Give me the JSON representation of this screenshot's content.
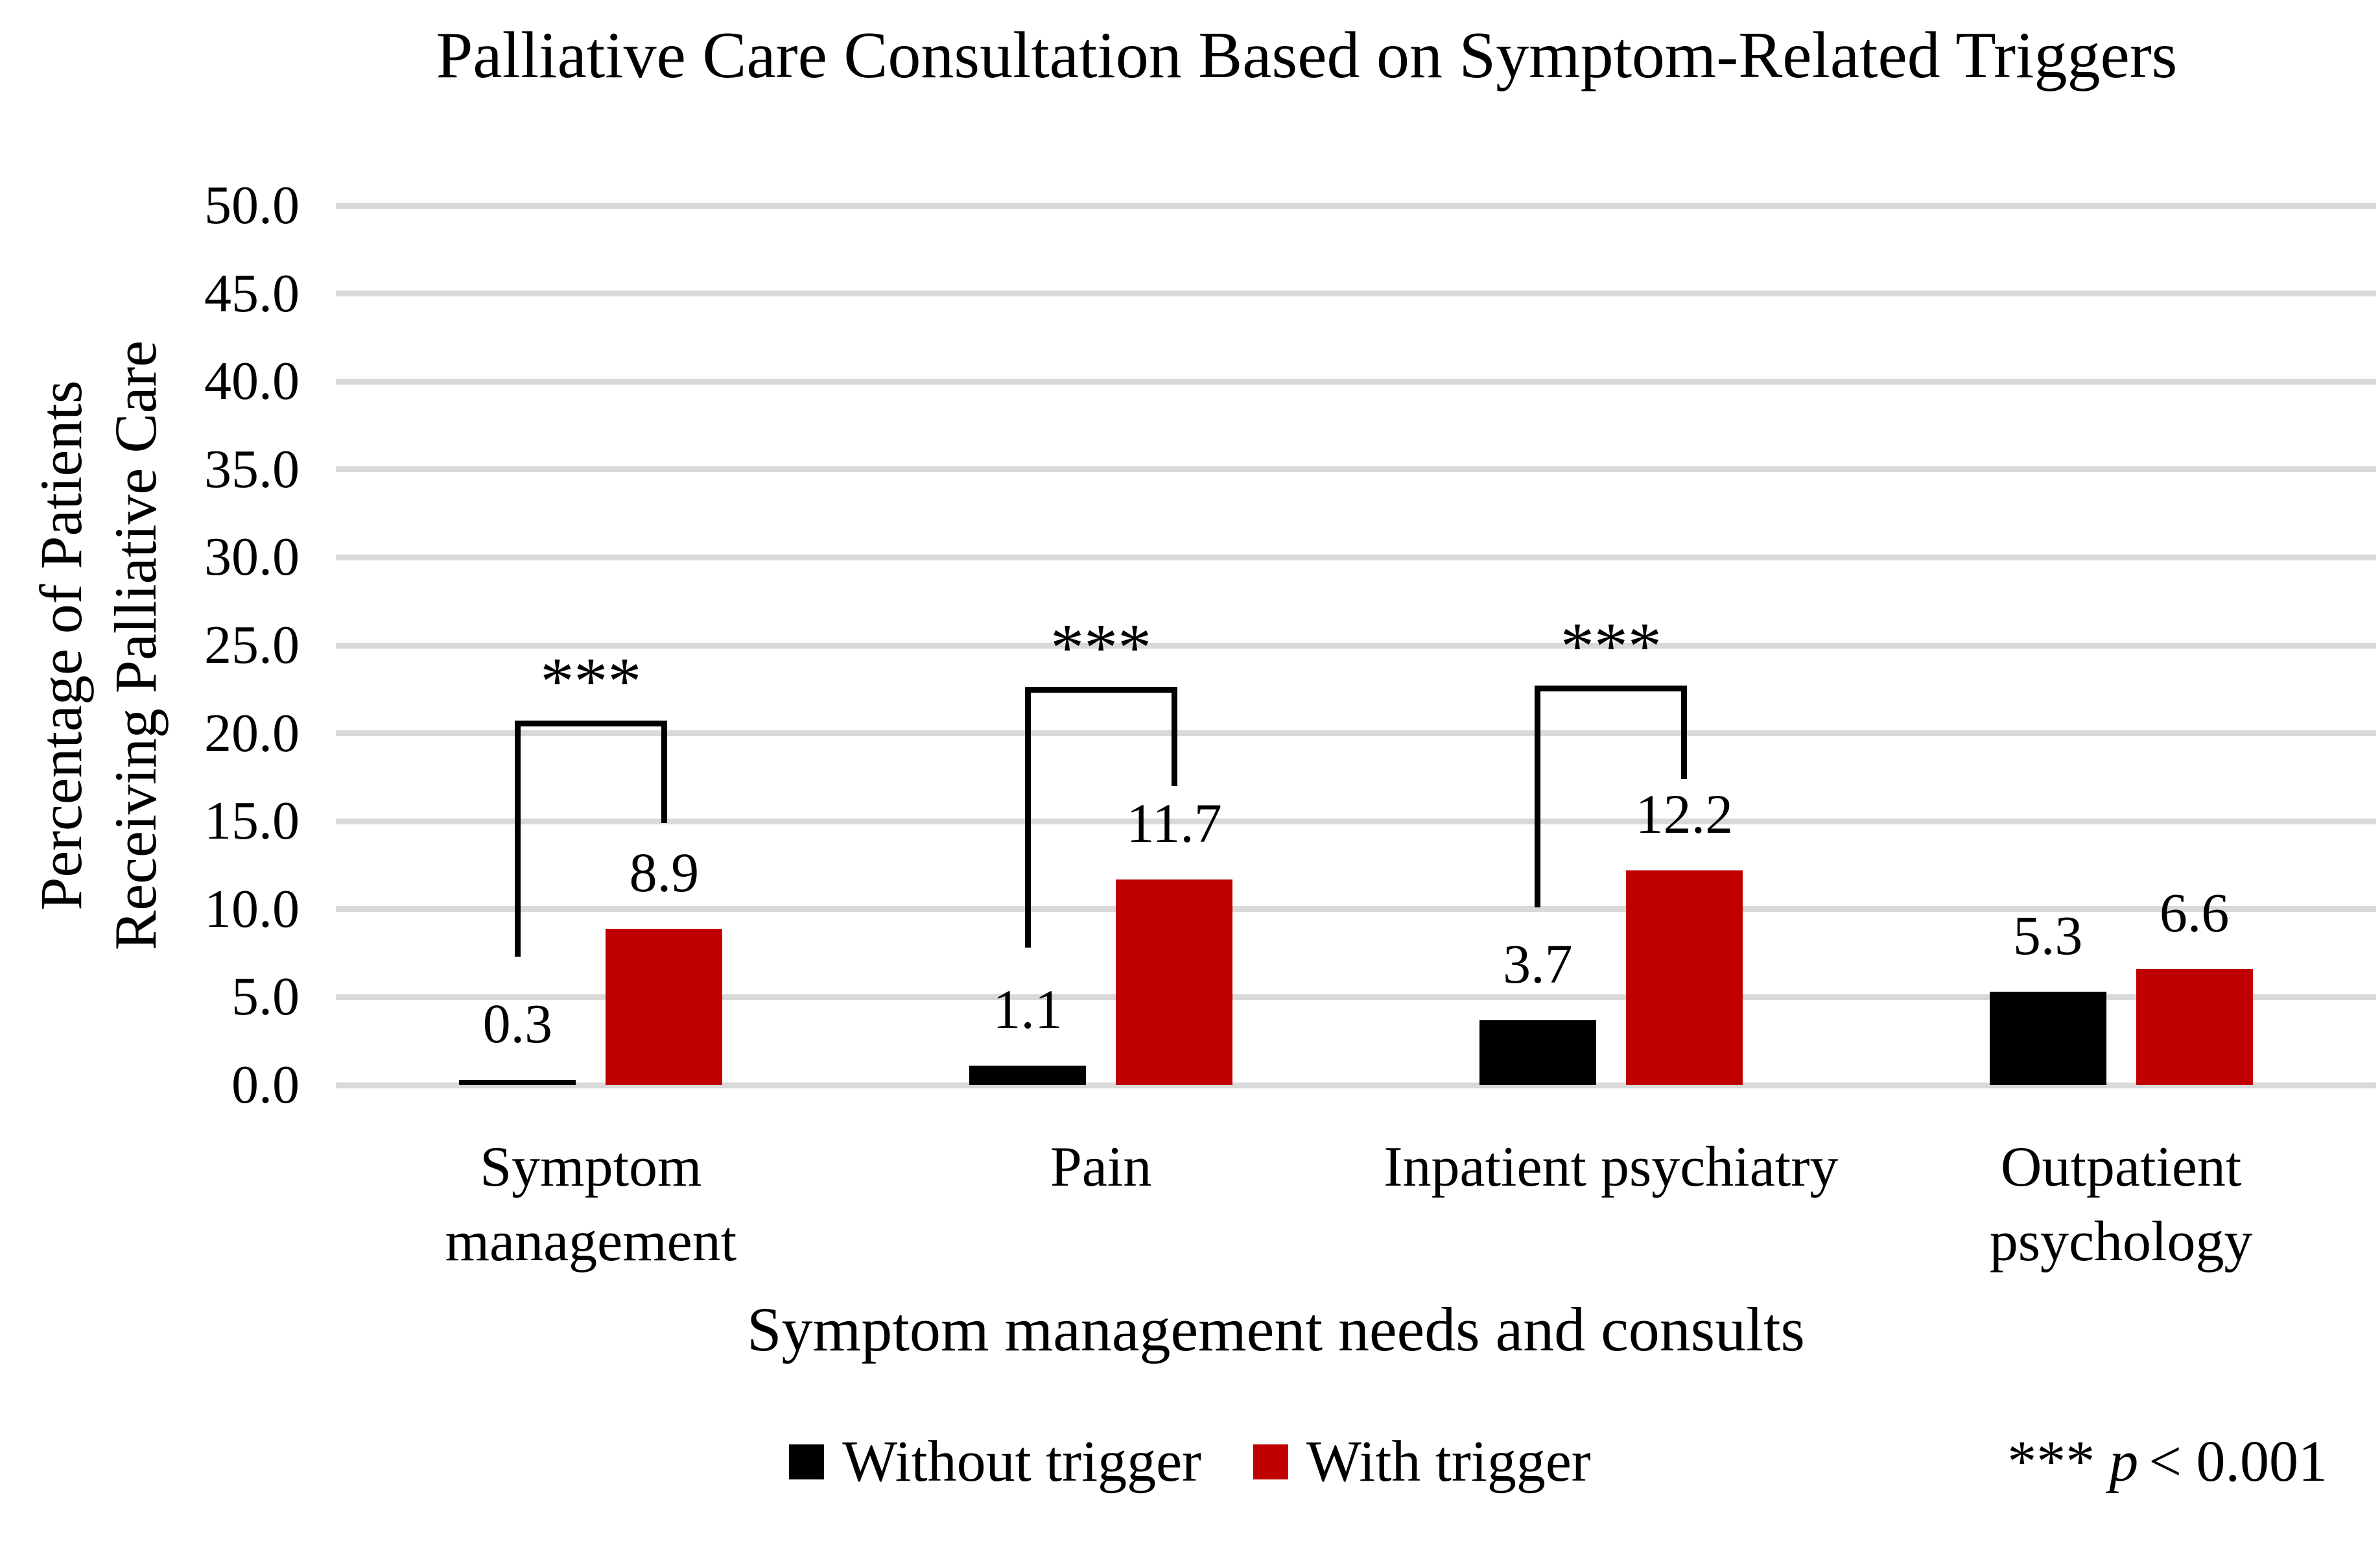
{
  "title": "Palliative Care Consultation Based on Symptom-Related Triggers",
  "y_axis": {
    "title_line1": "Percentage of Patients",
    "title_line2": "Receiving Palliative Care",
    "tick_labels": [
      "50.0",
      "45.0",
      "40.0",
      "35.0",
      "30.0",
      "25.0",
      "20.0",
      "15.0",
      "10.0",
      "5.0",
      "0.0"
    ]
  },
  "x_axis": {
    "title": "Symptom management needs and consults"
  },
  "legend": {
    "items": [
      {
        "label": "Without trigger",
        "color": "#000000"
      },
      {
        "label": "With trigger",
        "color": "#c00000"
      }
    ]
  },
  "footnote": {
    "stars": "***",
    "p": "p",
    "rest": "< 0.001"
  },
  "chart_data": {
    "type": "bar",
    "title": "Palliative Care Consultation Based on Symptom-Related Triggers",
    "categories": [
      "Symptom management",
      "Pain",
      "Inpatient psychiatry",
      "Outpatient psychology"
    ],
    "category_lines": [
      [
        "Symptom",
        "management"
      ],
      [
        "Pain"
      ],
      [
        "Inpatient psychiatry"
      ],
      [
        "Outpatient",
        "psychology"
      ]
    ],
    "series": [
      {
        "name": "Without trigger",
        "color": "#000000",
        "values": [
          0.3,
          1.1,
          3.7,
          5.3
        ]
      },
      {
        "name": "With trigger",
        "color": "#c00000",
        "values": [
          8.9,
          11.7,
          12.2,
          6.6
        ]
      }
    ],
    "xlabel": "Symptom management needs and consults",
    "ylabel": "Percentage of Patients Receiving Palliative Care",
    "ylim": [
      0,
      50
    ],
    "ytick_step": 5,
    "ytick_labels": [
      "0.0",
      "5.0",
      "10.0",
      "15.0",
      "20.0",
      "25.0",
      "30.0",
      "35.0",
      "40.0",
      "45.0",
      "50.0"
    ],
    "grid": true,
    "gridline_color": "#d9d9d9",
    "legend_position": "bottom",
    "bar_label_decimals": 1,
    "significance_brackets": [
      {
        "category_index": 0,
        "label": "***",
        "top_value": 20.4,
        "left_arm_bottom_value": 7.3,
        "right_arm_bottom_value": 14.9
      },
      {
        "category_index": 1,
        "label": "***",
        "top_value": 22.3,
        "left_arm_bottom_value": 7.8,
        "right_arm_bottom_value": 17.0
      },
      {
        "category_index": 2,
        "label": "***",
        "top_value": 22.4,
        "left_arm_bottom_value": 10.1,
        "right_arm_bottom_value": 17.4
      }
    ],
    "significance_note": "*** p < 0.001"
  }
}
